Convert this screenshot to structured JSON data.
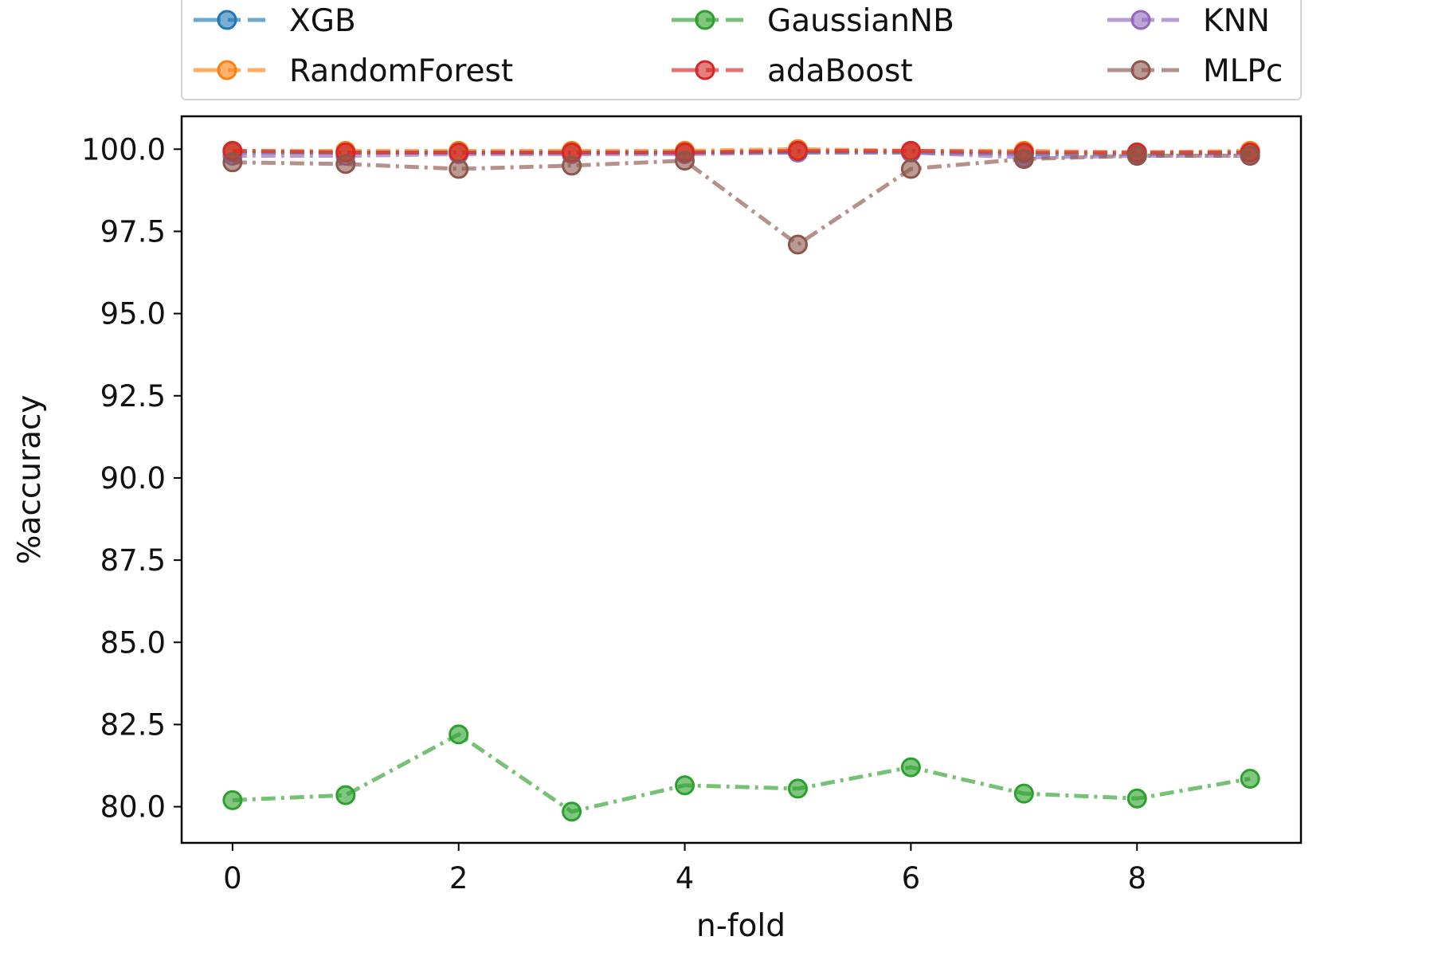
{
  "chart_data": {
    "type": "line",
    "title": "",
    "xlabel": "n-fold",
    "ylabel": "%accuracy",
    "x": [
      0,
      1,
      2,
      3,
      4,
      5,
      6,
      7,
      8,
      9
    ],
    "xlim": [
      -0.45,
      9.45
    ],
    "ylim": [
      78.9,
      101.0
    ],
    "xticks": [
      0,
      2,
      4,
      6,
      8
    ],
    "yticks": [
      80.0,
      82.5,
      85.0,
      87.5,
      90.0,
      92.5,
      95.0,
      97.5,
      100.0
    ],
    "xtick_labels": [
      "0",
      "2",
      "4",
      "6",
      "8"
    ],
    "ytick_labels": [
      "80.0",
      "82.5",
      "85.0",
      "87.5",
      "90.0",
      "92.5",
      "95.0",
      "97.5",
      "100.0"
    ],
    "grid": false,
    "legend_position": "top",
    "line_style": "dash-dot",
    "marker": "circle",
    "series": [
      {
        "name": "XGB",
        "color": "#1f77b4",
        "values": [
          99.9,
          99.9,
          99.9,
          99.9,
          99.9,
          99.9,
          99.9,
          99.85,
          99.85,
          99.9
        ]
      },
      {
        "name": "GaussianNB",
        "color": "#2ca02c",
        "values": [
          80.2,
          80.35,
          82.2,
          79.85,
          80.65,
          80.55,
          81.2,
          80.4,
          80.25,
          80.85
        ]
      },
      {
        "name": "KNN",
        "color": "#9467bd",
        "values": [
          99.8,
          99.8,
          99.85,
          99.85,
          99.85,
          99.9,
          99.9,
          99.75,
          99.8,
          99.8
        ]
      },
      {
        "name": "RandomForest",
        "color": "#ff7f0e",
        "values": [
          99.95,
          99.95,
          99.95,
          99.95,
          99.95,
          100.0,
          99.95,
          99.95,
          99.9,
          99.95
        ]
      },
      {
        "name": "adaBoost",
        "color": "#d62728",
        "values": [
          99.95,
          99.9,
          99.9,
          99.9,
          99.9,
          99.95,
          99.95,
          99.9,
          99.9,
          99.9
        ]
      },
      {
        "name": "MLPc",
        "color": "#8c564b",
        "values": [
          99.6,
          99.55,
          99.4,
          99.5,
          99.65,
          97.1,
          99.4,
          99.7,
          99.8,
          99.8
        ]
      }
    ]
  }
}
